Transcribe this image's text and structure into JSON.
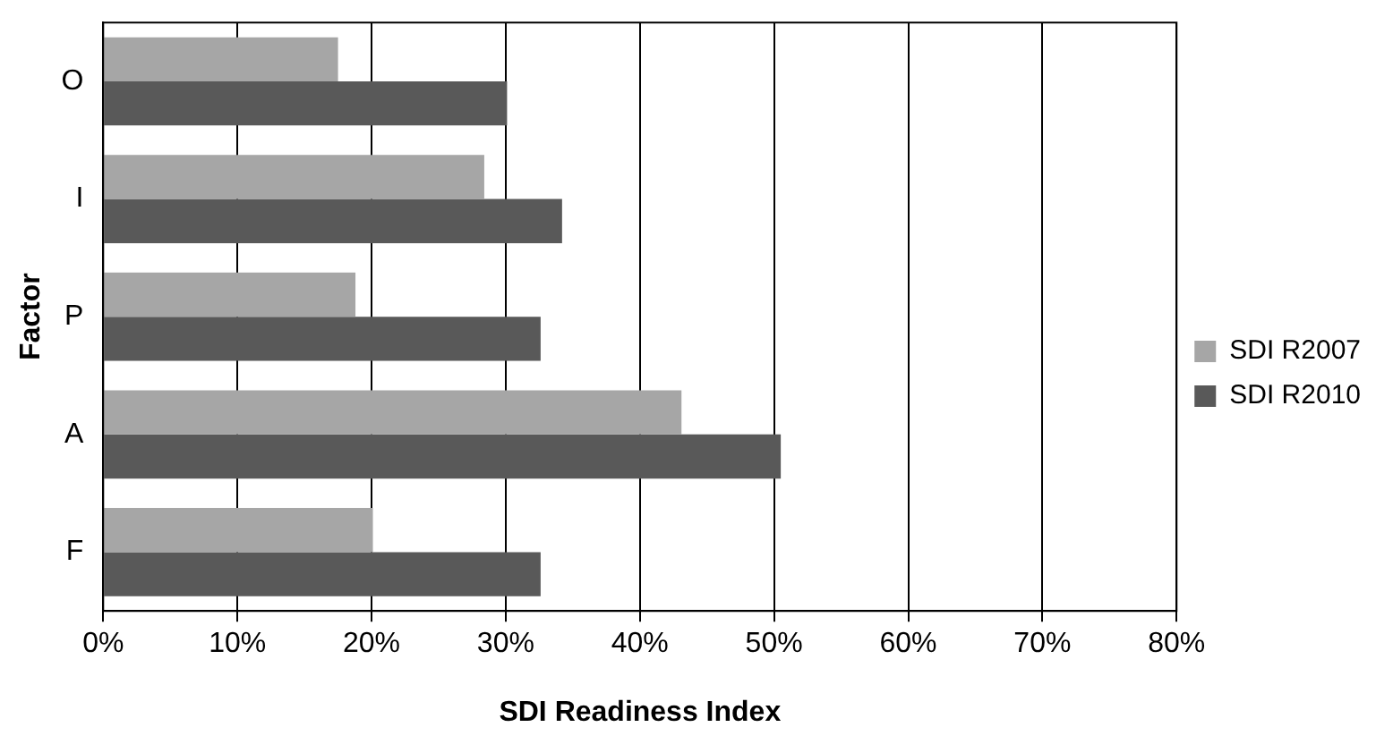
{
  "chart_data": {
    "type": "bar",
    "orientation": "horizontal",
    "xlabel": "SDI Readiness Index",
    "ylabel": "Factor",
    "categories": [
      "O",
      "I",
      "P",
      "A",
      "F"
    ],
    "series": [
      {
        "name": "SDI R2007",
        "color": "#a6a6a6",
        "values": [
          17.5,
          28.4,
          18.8,
          43.1,
          20.1
        ]
      },
      {
        "name": "SDI R2010",
        "color": "#595959",
        "values": [
          30.1,
          34.2,
          32.6,
          50.5,
          32.6
        ]
      }
    ],
    "xlim": [
      0,
      80
    ],
    "xticks": [
      {
        "value": 0,
        "label": "0%"
      },
      {
        "value": 10,
        "label": "10%"
      },
      {
        "value": 20,
        "label": "20%"
      },
      {
        "value": 30,
        "label": "30%"
      },
      {
        "value": 40,
        "label": "40%"
      },
      {
        "value": 50,
        "label": "50%"
      },
      {
        "value": 60,
        "label": "60%"
      },
      {
        "value": 70,
        "label": "70%"
      },
      {
        "value": 80,
        "label": "80%"
      }
    ],
    "grid": "x",
    "legend": "right"
  }
}
